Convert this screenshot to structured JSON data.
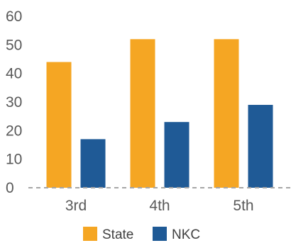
{
  "chart_data": {
    "type": "bar",
    "categories": [
      "3rd",
      "4th",
      "5th"
    ],
    "series": [
      {
        "name": "State",
        "color": "#F5A623",
        "values": [
          44,
          52,
          52
        ]
      },
      {
        "name": "NKC",
        "color": "#1F5A96",
        "values": [
          17,
          23,
          29
        ]
      }
    ],
    "ylim": [
      0,
      60
    ],
    "yticks": [
      0,
      10,
      20,
      30,
      40,
      50,
      60
    ],
    "grid": false,
    "baseline_style": "dashed",
    "legend_position": "bottom"
  }
}
